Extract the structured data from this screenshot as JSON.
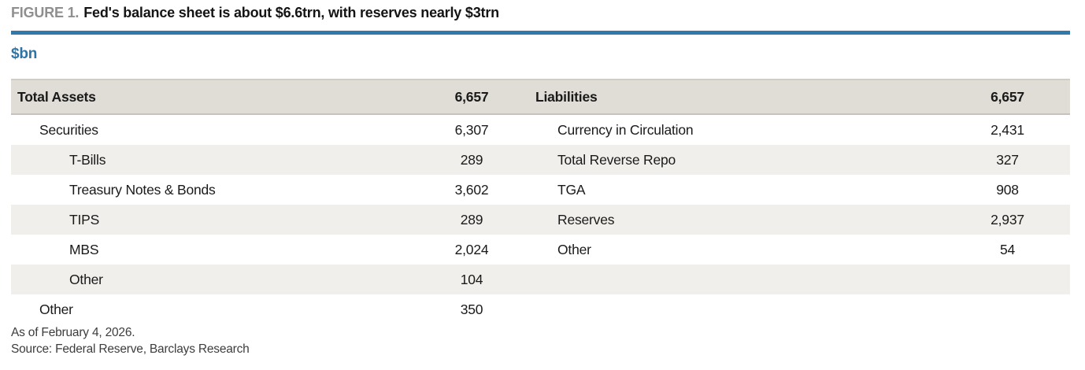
{
  "figure": {
    "label": "FIGURE 1.",
    "title": "Fed's balance sheet is about $6.6trn, with reserves nearly $3trn",
    "units": "$bn"
  },
  "colors": {
    "accent_blue": "#3279ab",
    "units_blue": "#2e74a5",
    "figure_label_gray": "#8f8f8f",
    "header_row_bg": "#e0dcd6",
    "band_row_bg": "#f1efeb"
  },
  "table": {
    "assets": {
      "header": {
        "label": "Total Assets",
        "value": "6,657"
      },
      "rows": [
        {
          "label": "Securities",
          "value": "6,307",
          "indent": 1
        },
        {
          "label": "T-Bills",
          "value": "289",
          "indent": 2
        },
        {
          "label": "Treasury Notes & Bonds",
          "value": "3,602",
          "indent": 2
        },
        {
          "label": "TIPS",
          "value": "289",
          "indent": 2
        },
        {
          "label": "MBS",
          "value": "2,024",
          "indent": 2
        },
        {
          "label": "Other",
          "value": "104",
          "indent": 2
        },
        {
          "label": "Other",
          "value": "350",
          "indent": 1
        }
      ]
    },
    "liabilities": {
      "header": {
        "label": "Liabilities",
        "value": "6,657"
      },
      "rows": [
        {
          "label": "Currency in Circulation",
          "value": "2,431",
          "indent": 1
        },
        {
          "label": "Total Reverse Repo",
          "value": "327",
          "indent": 1
        },
        {
          "label": "TGA",
          "value": "908",
          "indent": 1
        },
        {
          "label": "Reserves",
          "value": "2,937",
          "indent": 1
        },
        {
          "label": "Other",
          "value": "54",
          "indent": 1
        },
        {
          "label": "",
          "value": "",
          "indent": 1
        },
        {
          "label": "",
          "value": "",
          "indent": 1
        }
      ]
    }
  },
  "footnotes": [
    "As of February 4, 2026.",
    "Source: Federal Reserve, Barclays Research"
  ]
}
